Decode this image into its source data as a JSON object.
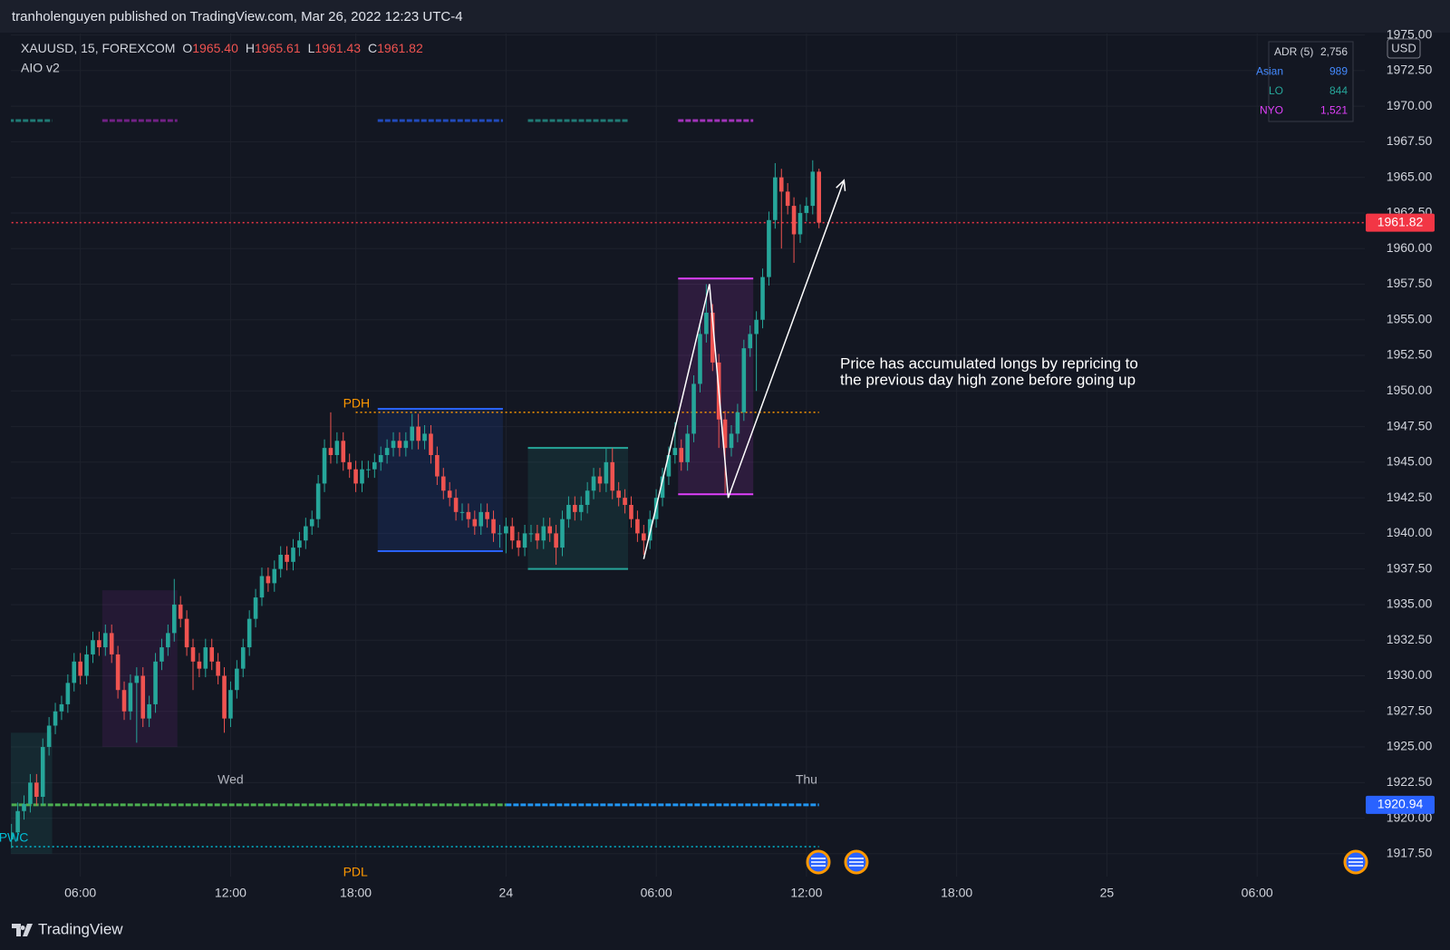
{
  "header": {
    "publisher": "tranholenguyen published on TradingView.com, Mar 26, 2022 12:23 UTC-4"
  },
  "footer": {
    "brand": "TradingView"
  },
  "chart_data": {
    "type": "candlestick",
    "symbol": "XAUUSD, 15, FOREXCOM",
    "ohlc_legend": [
      {
        "key": "O",
        "text": "1965.40"
      },
      {
        "key": "H",
        "text": "1965.61"
      },
      {
        "key": "L",
        "text": "1961.43"
      },
      {
        "key": "C",
        "text": "1961.82"
      }
    ],
    "indicator": "AIO v2",
    "currency": "USD",
    "x": [
      0,
      1,
      2,
      3,
      4,
      5,
      6,
      7,
      8,
      9,
      10,
      11,
      12,
      13,
      14,
      15,
      16,
      17,
      18,
      19,
      20,
      21,
      22,
      23,
      24,
      25,
      26,
      27,
      28,
      29,
      30,
      31,
      32,
      33,
      34,
      35,
      36,
      37,
      38,
      39,
      40,
      41,
      42,
      43,
      44,
      45,
      46,
      47,
      48,
      49,
      50,
      51,
      52,
      53,
      54,
      55,
      56,
      57,
      58,
      59,
      60,
      61,
      62,
      63,
      64,
      65,
      66,
      67,
      68,
      69,
      70,
      71,
      72,
      73,
      74,
      75,
      76,
      77,
      78,
      79,
      80,
      81,
      82,
      83,
      84,
      85,
      86,
      87,
      88,
      89,
      90,
      91,
      92,
      93,
      94,
      95,
      96,
      97,
      98,
      99,
      100,
      101,
      102,
      103,
      104,
      105,
      106,
      107,
      108,
      109,
      110,
      111,
      112,
      113,
      114,
      115,
      116,
      117,
      118,
      119,
      120,
      121,
      122,
      123,
      124,
      125,
      126,
      127,
      128,
      129
    ],
    "open": [
      1918.5,
      1919.0,
      1920.5,
      1921.0,
      1922.5,
      1921.5,
      1925.0,
      1926.5,
      1927.5,
      1928.0,
      1929.5,
      1931.0,
      1930.0,
      1931.5,
      1932.5,
      1932.0,
      1933.0,
      1931.5,
      1929.0,
      1927.5,
      1929.5,
      1930.0,
      1927.0,
      1928.0,
      1931.0,
      1932.0,
      1933.0,
      1935.0,
      1934.0,
      1932.0,
      1931.0,
      1930.5,
      1932.0,
      1931.0,
      1930.0,
      1927.0,
      1929.0,
      1930.5,
      1932.0,
      1934.0,
      1935.5,
      1937.0,
      1936.5,
      1937.5,
      1938.5,
      1938.0,
      1939.0,
      1939.5,
      1940.5,
      1941.0,
      1943.5,
      1946.0,
      1945.5,
      1946.5,
      1945.0,
      1944.5,
      1943.5,
      1944.5,
      1944.5,
      1945.0,
      1945.5,
      1946.0,
      1946.5,
      1946.0,
      1946.5,
      1947.5,
      1946.5,
      1947.0,
      1945.5,
      1944.0,
      1943.0,
      1942.5,
      1941.5,
      1941.5,
      1941.0,
      1940.5,
      1941.5,
      1941.0,
      1940.0,
      1940.0,
      1940.5,
      1939.5,
      1939.0,
      1940.0,
      1940.0,
      1939.5,
      1940.5,
      1940.0,
      1939.0,
      1941.0,
      1942.0,
      1941.5,
      1942.0,
      1943.0,
      1944.0,
      1943.5,
      1945.0,
      1943.0,
      1942.5,
      1942.0,
      1941.0,
      1940.0,
      1939.5,
      1941.0,
      1942.5,
      1944.0,
      1945.5,
      1946.0,
      1945.0,
      1947.0,
      1950.5,
      1954.0,
      1955.5,
      1952.0,
      1948.0,
      1946.0,
      1947.0,
      1948.5,
      1953.0,
      1954.0,
      1955.0,
      1958.0,
      1962.0,
      1965.0,
      1964.0,
      1963.0,
      1961.0,
      1962.5,
      1963.0,
      1965.4
    ],
    "high": [
      1919.6,
      1921.1,
      1921.6,
      1923.1,
      1923.1,
      1925.6,
      1927.1,
      1928.1,
      1928.6,
      1930.1,
      1931.6,
      1931.6,
      1932.1,
      1933.1,
      1933.1,
      1933.6,
      1933.6,
      1932.1,
      1929.6,
      1930.1,
      1930.6,
      1930.6,
      1928.6,
      1931.6,
      1932.6,
      1933.6,
      1936.8,
      1935.6,
      1934.6,
      1932.6,
      1931.6,
      1932.6,
      1932.6,
      1931.6,
      1930.6,
      1929.6,
      1931.1,
      1932.6,
      1934.6,
      1936.1,
      1937.6,
      1937.6,
      1938.1,
      1939.1,
      1939.1,
      1939.6,
      1940.1,
      1941.1,
      1941.6,
      1944.1,
      1946.6,
      1948.5,
      1947.1,
      1947.1,
      1945.6,
      1945.1,
      1945.1,
      1945.1,
      1945.6,
      1946.1,
      1946.6,
      1947.1,
      1947.1,
      1947.1,
      1948.4,
      1948.4,
      1947.6,
      1947.6,
      1946.1,
      1944.6,
      1943.6,
      1943.1,
      1942.1,
      1942.1,
      1941.6,
      1942.1,
      1942.1,
      1941.6,
      1940.6,
      1941.1,
      1941.1,
      1940.1,
      1940.6,
      1940.6,
      1940.6,
      1941.1,
      1941.1,
      1940.6,
      1941.6,
      1942.6,
      1942.6,
      1942.6,
      1943.6,
      1944.6,
      1944.6,
      1946.0,
      1946.0,
      1943.6,
      1943.1,
      1942.6,
      1941.6,
      1940.6,
      1941.6,
      1943.1,
      1944.6,
      1946.1,
      1947.8,
      1946.6,
      1947.6,
      1951.1,
      1954.6,
      1957.5,
      1956.1,
      1952.6,
      1948.6,
      1947.6,
      1949.1,
      1953.6,
      1954.6,
      1955.6,
      1958.6,
      1962.6,
      1966.0,
      1965.6,
      1964.6,
      1963.6,
      1963.1,
      1963.6,
      1966.2,
      1965.61
    ],
    "low": [
      1917.9,
      1918.4,
      1919.9,
      1920.4,
      1920.9,
      1920.9,
      1924.4,
      1925.9,
      1926.9,
      1927.4,
      1928.9,
      1929.4,
      1929.4,
      1930.9,
      1931.4,
      1931.4,
      1930.9,
      1928.4,
      1926.9,
      1926.9,
      1925.3,
      1926.4,
      1926.4,
      1927.4,
      1930.4,
      1931.4,
      1932.4,
      1933.4,
      1931.4,
      1929.0,
      1929.9,
      1929.9,
      1930.4,
      1929.4,
      1926.0,
      1926.4,
      1928.4,
      1929.9,
      1931.4,
      1933.4,
      1934.9,
      1935.9,
      1935.9,
      1936.9,
      1937.4,
      1937.4,
      1938.4,
      1938.9,
      1939.9,
      1940.4,
      1942.9,
      1944.9,
      1944.9,
      1944.4,
      1943.9,
      1942.9,
      1942.9,
      1943.9,
      1943.9,
      1944.4,
      1944.9,
      1945.4,
      1945.4,
      1945.4,
      1945.9,
      1945.9,
      1945.9,
      1944.9,
      1943.4,
      1942.4,
      1941.9,
      1940.9,
      1940.9,
      1940.4,
      1939.9,
      1939.9,
      1940.4,
      1939.4,
      1939.0,
      1938.6,
      1938.9,
      1938.4,
      1938.4,
      1939.4,
      1938.9,
      1938.9,
      1939.4,
      1937.8,
      1938.4,
      1940.4,
      1940.9,
      1940.9,
      1941.4,
      1942.4,
      1942.9,
      1942.9,
      1942.4,
      1941.9,
      1941.4,
      1940.4,
      1939.4,
      1938.5,
      1938.9,
      1940.4,
      1941.9,
      1943.4,
      1944.9,
      1944.4,
      1944.4,
      1946.4,
      1949.9,
      1953.4,
      1951.4,
      1946.0,
      1942.8,
      1945.4,
      1946.4,
      1947.9,
      1952.4,
      1950.0,
      1954.4,
      1957.4,
      1961.4,
      1960.0,
      1962.4,
      1959.0,
      1960.4,
      1961.9,
      1962.4,
      1961.43
    ],
    "close": [
      1919.0,
      1920.5,
      1921.0,
      1922.5,
      1921.5,
      1925.0,
      1926.5,
      1927.5,
      1928.0,
      1929.5,
      1931.0,
      1930.0,
      1931.5,
      1932.5,
      1932.0,
      1933.0,
      1931.5,
      1929.0,
      1927.5,
      1929.5,
      1930.0,
      1927.0,
      1928.0,
      1931.0,
      1932.0,
      1933.0,
      1935.0,
      1934.0,
      1932.0,
      1931.0,
      1930.5,
      1932.0,
      1931.0,
      1930.0,
      1927.0,
      1929.0,
      1930.5,
      1932.0,
      1934.0,
      1935.5,
      1937.0,
      1936.5,
      1937.5,
      1938.5,
      1938.0,
      1939.0,
      1939.5,
      1940.5,
      1941.0,
      1943.5,
      1946.0,
      1945.5,
      1946.5,
      1945.0,
      1944.5,
      1943.5,
      1944.5,
      1944.5,
      1945.0,
      1945.5,
      1946.0,
      1946.5,
      1946.0,
      1946.5,
      1947.5,
      1946.5,
      1947.0,
      1945.5,
      1944.0,
      1943.0,
      1942.5,
      1941.5,
      1941.5,
      1941.0,
      1940.5,
      1941.5,
      1941.0,
      1940.0,
      1940.0,
      1940.5,
      1939.5,
      1939.0,
      1940.0,
      1940.0,
      1939.5,
      1940.5,
      1940.0,
      1939.0,
      1941.0,
      1942.0,
      1941.5,
      1942.0,
      1943.0,
      1944.0,
      1943.5,
      1945.0,
      1943.0,
      1942.5,
      1942.0,
      1941.0,
      1940.0,
      1939.5,
      1941.0,
      1942.5,
      1944.0,
      1945.5,
      1946.0,
      1945.0,
      1947.0,
      1950.5,
      1954.0,
      1955.5,
      1952.0,
      1948.0,
      1946.0,
      1947.0,
      1948.5,
      1953.0,
      1954.0,
      1955.0,
      1958.0,
      1962.0,
      1965.0,
      1964.0,
      1963.0,
      1961.0,
      1962.5,
      1963.0,
      1965.4,
      1961.82
    ],
    "up_color": "#26a69a",
    "down_color": "#ef5350",
    "xlim": [
      -0.1,
      216.2
    ],
    "xticks": [
      {
        "value": 11,
        "label": "06:00"
      },
      {
        "value": 35,
        "label": "12:00"
      },
      {
        "value": 55,
        "label": "18:00"
      },
      {
        "value": 79,
        "label": "24"
      },
      {
        "value": 103,
        "label": "06:00"
      },
      {
        "value": 127,
        "label": "12:00"
      },
      {
        "value": 151,
        "label": "18:00"
      },
      {
        "value": 175,
        "label": "25"
      },
      {
        "value": 199,
        "label": "06:00"
      }
    ],
    "day_labels": [
      {
        "value": 35,
        "label": "Wed"
      },
      {
        "value": 127,
        "label": "Thu"
      }
    ],
    "ylim": [
      1915.9,
      1975.1
    ],
    "yticks": [
      {
        "value": 1917.5,
        "label": "1917.50"
      },
      {
        "value": 1920,
        "label": "1920.00"
      },
      {
        "value": 1922.5,
        "label": "1922.50"
      },
      {
        "value": 1925,
        "label": "1925.00"
      },
      {
        "value": 1927.5,
        "label": "1927.50"
      },
      {
        "value": 1930,
        "label": "1930.00"
      },
      {
        "value": 1932.5,
        "label": "1932.50"
      },
      {
        "value": 1935,
        "label": "1935.00"
      },
      {
        "value": 1937.5,
        "label": "1937.50"
      },
      {
        "value": 1940,
        "label": "1940.00"
      },
      {
        "value": 1942.5,
        "label": "1942.50"
      },
      {
        "value": 1945,
        "label": "1945.00"
      },
      {
        "value": 1947.5,
        "label": "1947.50"
      },
      {
        "value": 1950,
        "label": "1950.00"
      },
      {
        "value": 1952.5,
        "label": "1952.50"
      },
      {
        "value": 1955,
        "label": "1955.00"
      },
      {
        "value": 1957.5,
        "label": "1957.50"
      },
      {
        "value": 1960,
        "label": "1960.00"
      },
      {
        "value": 1962.5,
        "label": "1962.50"
      },
      {
        "value": 1965,
        "label": "1965.00"
      },
      {
        "value": 1967.5,
        "label": "1967.50"
      },
      {
        "value": 1970,
        "label": "1970.00"
      },
      {
        "value": 1972.5,
        "label": "1972.50"
      },
      {
        "value": 1975,
        "label": "1975.00"
      }
    ],
    "grid": true,
    "zones": [
      {
        "x": [
          0,
          6
        ],
        "y": [
          1917.5,
          1926
        ],
        "color": "#26a69a",
        "edges": false
      },
      {
        "x": [
          15,
          26
        ],
        "y": [
          1925,
          1936
        ],
        "color": "#9c27b0",
        "edges": false
      },
      {
        "x": [
          59,
          78
        ],
        "y": [
          1938.75,
          1948.75
        ],
        "color": "#2962ff",
        "edges": true
      },
      {
        "x": [
          83,
          98
        ],
        "y": [
          1937.5,
          1946
        ],
        "color": "#26a69a",
        "edges": true
      },
      {
        "x": [
          107,
          118
        ],
        "y": [
          1942.75,
          1957.9
        ],
        "color": "#e040fb",
        "edges": true
      }
    ],
    "levels": [
      {
        "name": "PDH",
        "value": 1948.5,
        "x": [
          55,
          129
        ],
        "color": "#ff9800",
        "style": "dotted"
      },
      {
        "name": "PWC",
        "value": 1918,
        "x": [
          0,
          129
        ],
        "color": "#00bcd4",
        "style": "dotted"
      },
      {
        "name": "PDL",
        "value": 1915.6,
        "x": [
          55,
          129
        ],
        "color": "#ff9800",
        "style": "dotted"
      },
      {
        "value": 1920.94,
        "x": [
          0,
          79
        ],
        "color": "#4caf50",
        "style": "dashed"
      },
      {
        "value": 1920.94,
        "x": [
          79,
          129
        ],
        "color": "#2196f3",
        "style": "dashed"
      },
      {
        "value": 1961.82,
        "x": [
          0,
          216.2
        ],
        "color": "#f23645",
        "style": "dotted"
      }
    ],
    "price_tags": [
      {
        "value": 1961.82,
        "label": "1961.82",
        "color": "#f23645"
      },
      {
        "value": 1920.94,
        "label": "1920.94",
        "color": "#2962ff"
      }
    ],
    "adr_table": [
      {
        "label": "ADR (5)",
        "value": "2,756",
        "color": "#d1d4dc"
      },
      {
        "label": "Asian",
        "value": "989",
        "color": "#448aff"
      },
      {
        "label": "LO",
        "value": "844",
        "color": "#26a69a"
      },
      {
        "label": "NYO",
        "value": "1,521",
        "color": "#e040fb"
      }
    ],
    "annotation": [
      "Price has accumulated longs by repricing to",
      "the previous day high zone before going up"
    ],
    "drawing": {
      "x": [
        101,
        111.5,
        114.5,
        133
      ],
      "y": [
        1938.2,
        1957.5,
        1942.5,
        1964.8
      ],
      "color": "#ffffff"
    }
  }
}
